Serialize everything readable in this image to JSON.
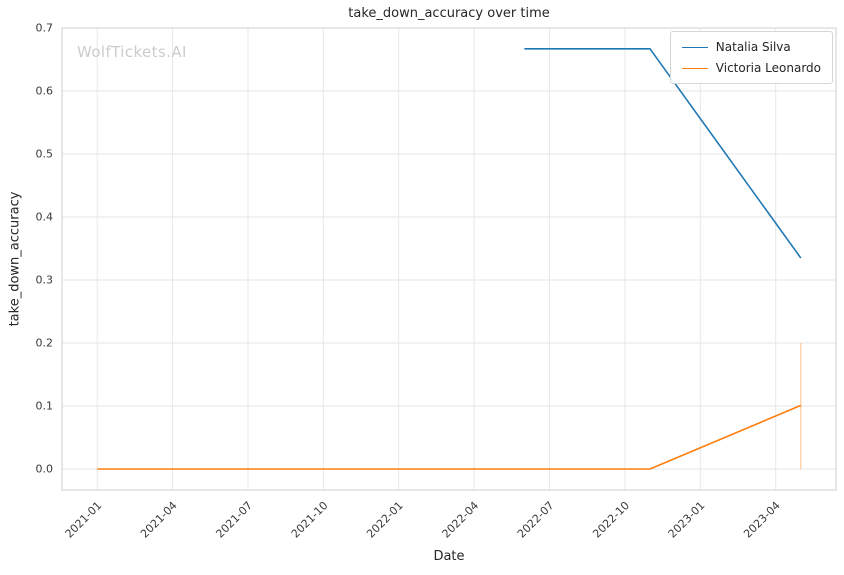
{
  "chart_data": {
    "type": "line",
    "title": "take_down_accuracy over time",
    "xlabel": "Date",
    "ylabel": "take_down_accuracy",
    "watermark": "WolfTickets.AI",
    "x_tick_labels": [
      "2021-01",
      "2021-04",
      "2021-07",
      "2021-10",
      "2022-01",
      "2022-04",
      "2022-07",
      "2022-10",
      "2023-01",
      "2023-04"
    ],
    "y_tick_labels": [
      "0.0",
      "0.1",
      "0.2",
      "0.3",
      "0.4",
      "0.5",
      "0.6",
      "0.7"
    ],
    "ylim": [
      -0.0333,
      0.7
    ],
    "xlim_months": [
      -1.4,
      29.4
    ],
    "grid": true,
    "legend_position": "upper right",
    "series": [
      {
        "name": "Natalia Silva",
        "color": "#1f77b4",
        "points": [
          {
            "x": "2022-06",
            "y": 0.667
          },
          {
            "x": "2022-11",
            "y": 0.667
          },
          {
            "x": "2023-05",
            "y": 0.335
          }
        ]
      },
      {
        "name": "Victoria Leonardo",
        "color": "#ff7f0e",
        "points": [
          {
            "x": "2021-01",
            "y": 0.0
          },
          {
            "x": "2022-11",
            "y": 0.0
          },
          {
            "x": "2023-05",
            "y": 0.101
          }
        ]
      }
    ],
    "annotations": [
      {
        "type": "vline",
        "x": "2023-05",
        "y0": 0.0,
        "y1": 0.2,
        "color": "#ff7f0e",
        "opacity": 0.5,
        "width": 1
      }
    ]
  }
}
